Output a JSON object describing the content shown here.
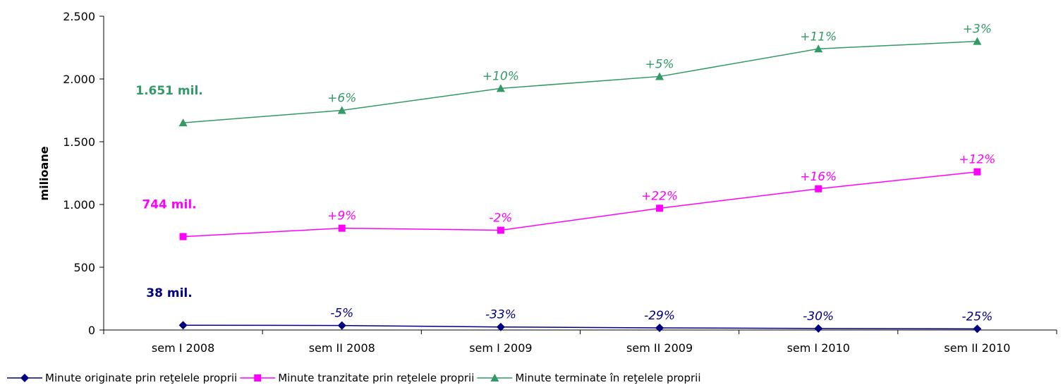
{
  "chart_data": {
    "type": "line",
    "title": "",
    "xlabel": "",
    "ylabel": "milioane",
    "categories": [
      "sem I 2008",
      "sem II 2008",
      "sem I 2009",
      "sem II 2009",
      "sem I 2010",
      "sem II 2010"
    ],
    "ylim": [
      0,
      2500
    ],
    "yticks": [
      0,
      500,
      1000,
      1500,
      2000,
      2500
    ],
    "ytick_labels": [
      "0",
      "500",
      "1.000",
      "1.500",
      "2.000",
      "2.500"
    ],
    "grid": false,
    "legend_position": "bottom",
    "series": [
      {
        "name": "Minute originate prin reţelele proprii",
        "color": "#000080",
        "marker": "diamond",
        "values": [
          38,
          36,
          24,
          17,
          12,
          9
        ],
        "start_label": "38 mil.",
        "change_labels": [
          "",
          "-5%",
          "-33%",
          "-29%",
          "-30%",
          "-25%"
        ]
      },
      {
        "name": "Minute tranzitate prin reţelele proprii",
        "color": "#ff00ff",
        "marker": "square",
        "values": [
          744,
          811,
          795,
          970,
          1125,
          1260
        ],
        "start_label": "744 mil.",
        "change_labels": [
          "",
          "+9%",
          "-2%",
          "+22%",
          "+16%",
          "+12%"
        ]
      },
      {
        "name": "Minute terminate în reţelele proprii",
        "color": "#339966",
        "marker": "triangle",
        "values": [
          1651,
          1750,
          1925,
          2020,
          2240,
          2300
        ],
        "start_label": "1.651 mil.",
        "change_labels": [
          "",
          "+6%",
          "+10%",
          "+5%",
          "+11%",
          "+3%"
        ]
      }
    ]
  }
}
